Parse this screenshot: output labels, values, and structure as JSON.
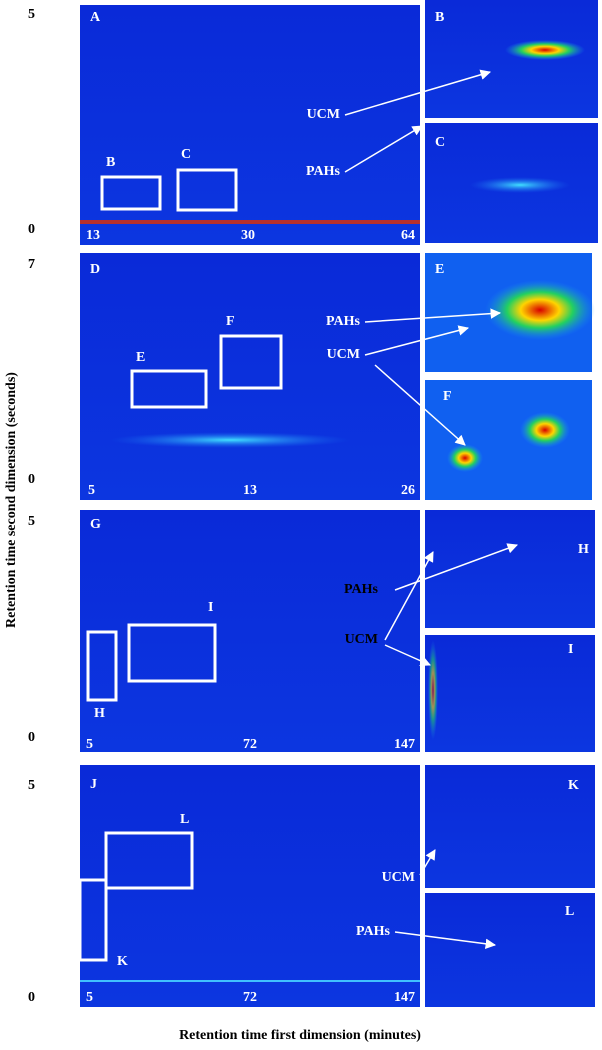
{
  "figure": {
    "y_axis_title": "Retention time second dimension (seconds)",
    "x_axis_title": "Retention time first dimension (minutes)",
    "panels": [
      {
        "label": "A",
        "y_ticks": [
          "5",
          "0"
        ],
        "x_ticks": [
          "13",
          "30",
          "64"
        ],
        "boxes": [
          "B",
          "C"
        ],
        "insets": [
          "B",
          "C"
        ],
        "annotations": [
          "UCM",
          "PAHs"
        ]
      },
      {
        "label": "D",
        "y_ticks": [
          "7",
          "0"
        ],
        "x_ticks": [
          "5",
          "13",
          "26"
        ],
        "boxes": [
          "E",
          "F"
        ],
        "insets": [
          "E",
          "F"
        ],
        "annotations": [
          "PAHs",
          "UCM"
        ]
      },
      {
        "label": "G",
        "y_ticks": [
          "5",
          "0"
        ],
        "x_ticks": [
          "5",
          "72",
          "147"
        ],
        "boxes": [
          "I",
          "H"
        ],
        "insets": [
          "H",
          "I"
        ],
        "annotations": [
          "PAHs",
          "UCM"
        ]
      },
      {
        "label": "J",
        "y_ticks": [
          "5",
          "0"
        ],
        "x_ticks": [
          "5",
          "72",
          "147"
        ],
        "boxes": [
          "L",
          "K"
        ],
        "insets": [
          "K",
          "L"
        ],
        "annotations": [
          "UCM",
          "PAHs"
        ]
      }
    ]
  }
}
